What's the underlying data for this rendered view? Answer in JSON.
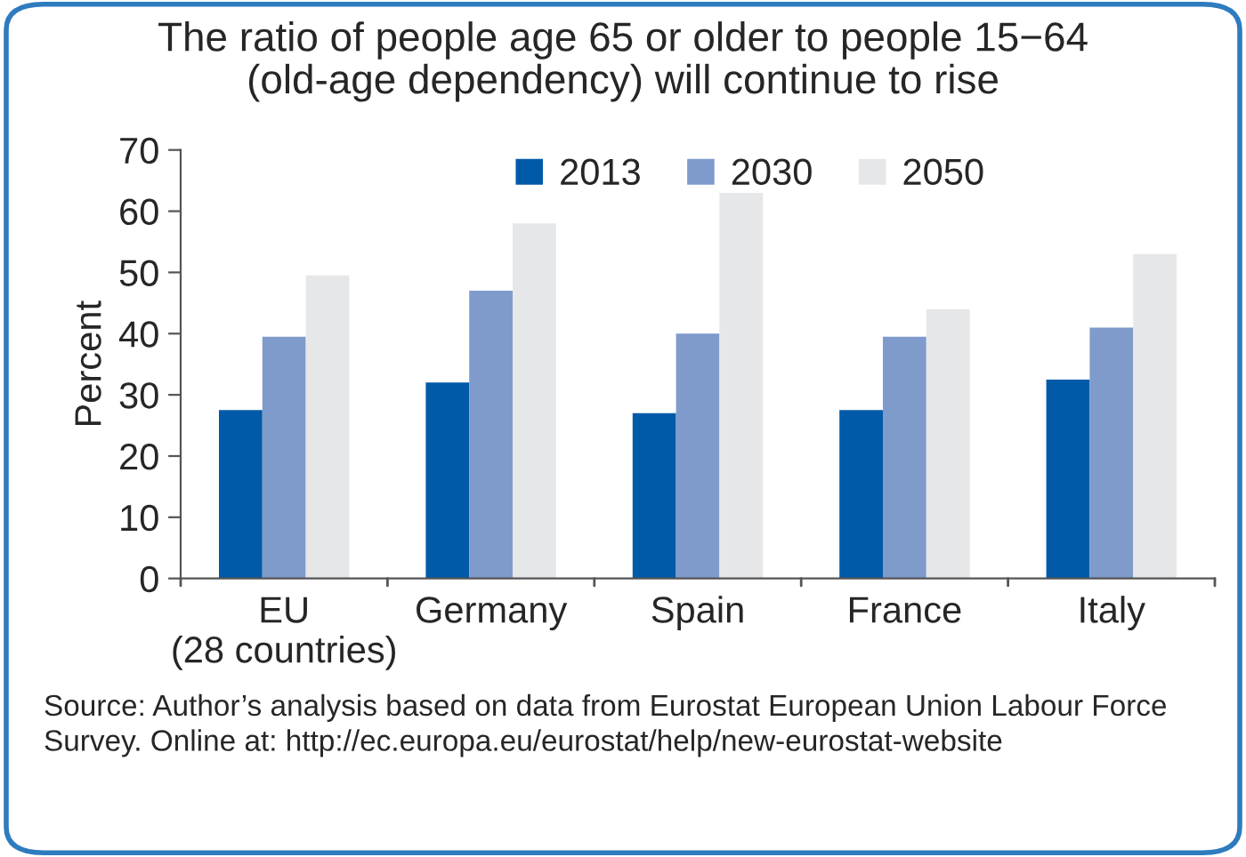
{
  "chart_data": {
    "type": "bar",
    "title": "The ratio of people age 65 or older to people 15−64\n(old-age dependency) will continue to rise",
    "ylabel": "Percent",
    "categories": [
      "EU\n(28 countries)",
      "Germany",
      "Spain",
      "France",
      "Italy"
    ],
    "series": [
      {
        "name": "2013",
        "color": "#005aa8",
        "values": [
          27.5,
          32,
          27,
          27.5,
          32.5
        ]
      },
      {
        "name": "2030",
        "color": "#7f9bcc",
        "values": [
          39.5,
          47,
          40,
          39.5,
          41
        ]
      },
      {
        "name": "2050",
        "color": "#e6e7e8",
        "values": [
          49.5,
          58,
          63,
          44,
          53
        ]
      }
    ],
    "ylim": [
      0,
      70
    ],
    "yticks": [
      0,
      10,
      20,
      30,
      40,
      50,
      60,
      70
    ],
    "grid": false,
    "legend": "top",
    "annotations": [
      "Source: Author’s analysis based on data from Eurostat European Union Labour Force Survey. Online at: http://ec.europa.eu/eurostat/help/new-eurostat-website"
    ]
  }
}
